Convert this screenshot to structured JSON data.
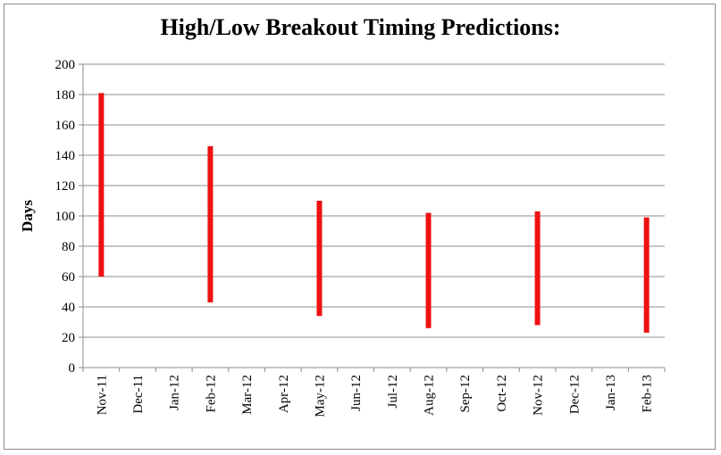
{
  "chart_data": {
    "type": "bar",
    "subtype": "floating-range",
    "title": "High/Low Breakout Timing Predictions:",
    "xlabel": "",
    "ylabel": "Days",
    "ylim": [
      0,
      200
    ],
    "yticks": [
      0,
      20,
      40,
      60,
      80,
      100,
      120,
      140,
      160,
      180,
      200
    ],
    "categories": [
      "Nov-11",
      "Dec-11",
      "Jan-12",
      "Feb-12",
      "Mar-12",
      "Apr-12",
      "May-12",
      "Jun-12",
      "Jul-12",
      "Aug-12",
      "Sep-12",
      "Oct-12",
      "Nov-12",
      "Dec-12",
      "Jan-13",
      "Feb-13"
    ],
    "ranges": [
      {
        "category": "Nov-11",
        "low": 60,
        "high": 181
      },
      {
        "category": "Feb-12",
        "low": 43,
        "high": 146
      },
      {
        "category": "May-12",
        "low": 34,
        "high": 110
      },
      {
        "category": "Aug-12",
        "low": 26,
        "high": 102
      },
      {
        "category": "Nov-12",
        "low": 28,
        "high": 103
      },
      {
        "category": "Feb-13",
        "low": 23,
        "high": 99
      }
    ],
    "bar_color": "#ee1111",
    "grid": true,
    "legend": "none"
  }
}
